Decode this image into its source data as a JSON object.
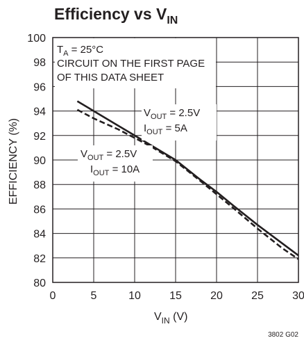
{
  "chart_data": {
    "type": "line",
    "title": "Efficiency vs V",
    "title_sub": "IN",
    "xlabel": "V",
    "xlabel_sub": "IN",
    "xlabel_unit": " (V)",
    "ylabel": "EFFICIENCY (%)",
    "xlim": [
      0,
      30
    ],
    "ylim": [
      80,
      100
    ],
    "xticks": [
      0,
      5,
      10,
      15,
      20,
      25,
      30
    ],
    "yticks": [
      80,
      82,
      84,
      86,
      88,
      90,
      92,
      94,
      96,
      98,
      100
    ],
    "grid": true,
    "series": [
      {
        "name": "VOUT = 2.5V, IOUT = 5A",
        "style": "solid",
        "color": "#231f20",
        "x": [
          3,
          5,
          8,
          10,
          12,
          15,
          18,
          20,
          22,
          25,
          28,
          30
        ],
        "y": [
          94.8,
          94.0,
          92.8,
          92.0,
          91.2,
          90.0,
          88.4,
          87.4,
          86.3,
          84.7,
          83.2,
          82.2
        ]
      },
      {
        "name": "VOUT = 2.5V, IOUT = 10A",
        "style": "dashed",
        "color": "#231f20",
        "x": [
          3,
          5,
          8,
          10,
          12,
          15,
          18,
          20,
          22,
          25,
          28,
          30
        ],
        "y": [
          94.1,
          93.4,
          92.5,
          91.8,
          91.1,
          89.9,
          88.3,
          87.2,
          86.1,
          84.4,
          82.8,
          81.9
        ]
      }
    ],
    "annotations": {
      "conditions_line1_main": "T",
      "conditions_line1_sub": "A",
      "conditions_line1_rest": " = 25°C",
      "conditions_line2": "CIRCUIT ON THE FIRST PAGE",
      "conditions_line3": "OF THIS DATA SHEET",
      "label_5a_vout": "V",
      "label_5a_vout_sub": "OUT",
      "label_5a_vout_val": " = 2.5V",
      "label_5a_iout": "I",
      "label_5a_iout_sub": "OUT",
      "label_5a_iout_val": " = 5A",
      "label_10a_vout": "V",
      "label_10a_vout_sub": "OUT",
      "label_10a_vout_val": " = 2.5V",
      "label_10a_iout": "I",
      "label_10a_iout_sub": "OUT",
      "label_10a_iout_val": " = 10A"
    },
    "figure_code": "3802 G02"
  }
}
